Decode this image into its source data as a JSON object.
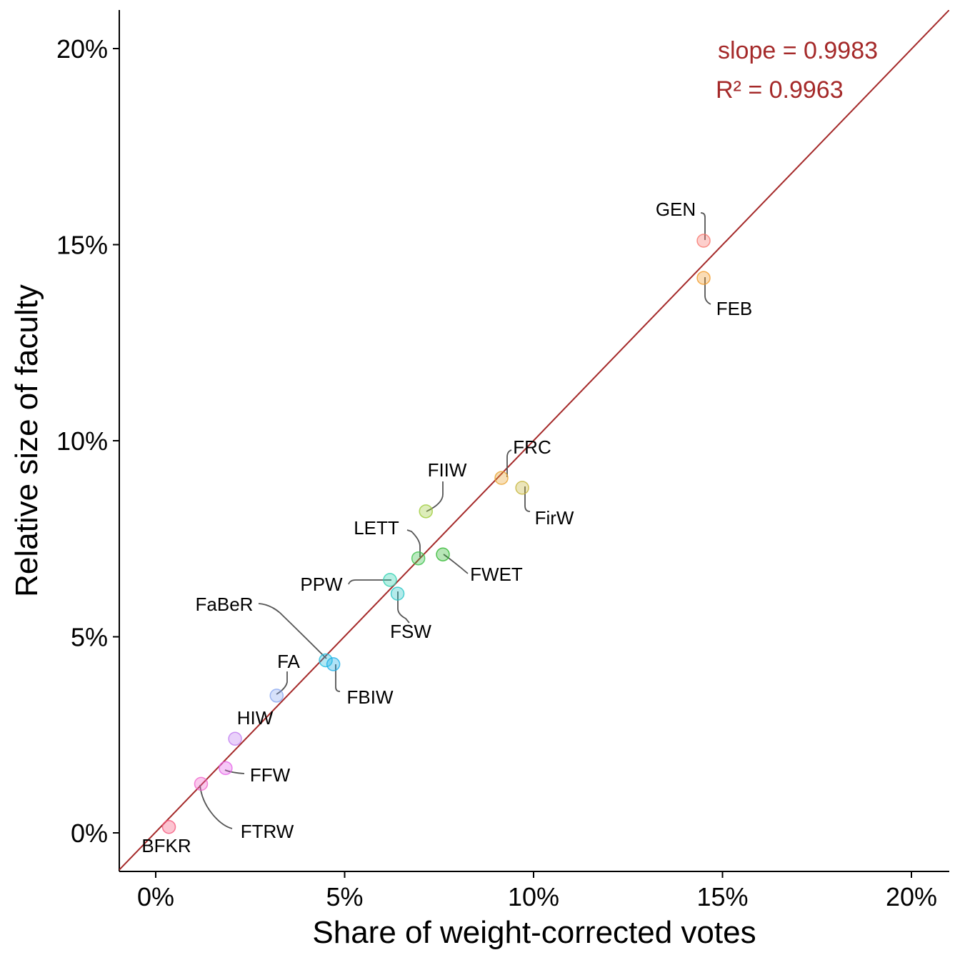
{
  "chart_data": {
    "type": "scatter",
    "xlabel": "Share of weight-corrected votes",
    "ylabel": "Relative size of faculty",
    "xlim": [
      -0.9,
      21.0
    ],
    "ylim": [
      -1.0,
      21.0
    ],
    "x_ticks": [
      0,
      5,
      10,
      15,
      20
    ],
    "x_tick_labels": [
      "0%",
      "5%",
      "10%",
      "15%",
      "20%"
    ],
    "y_ticks": [
      0,
      5,
      10,
      15,
      20
    ],
    "y_tick_labels": [
      "0%",
      "5%",
      "10%",
      "15%",
      "20%"
    ],
    "grid": false,
    "legend": "none",
    "fit_line": {
      "slope": 0.9983,
      "intercept": 0.02,
      "color": "#a52a2a"
    },
    "annotations": [
      {
        "text": "slope = 0.9983",
        "color": "#a52a2a"
      },
      {
        "text": "R² = 0.9963",
        "color": "#a52a2a"
      }
    ],
    "points": [
      {
        "label": "GEN",
        "x": 14.5,
        "y": 15.1,
        "color": "#f8766d"
      },
      {
        "label": "FEB",
        "x": 14.5,
        "y": 14.15,
        "color": "#f29c2c"
      },
      {
        "label": "FRC",
        "x": 9.15,
        "y": 9.05,
        "color": "#e8a431"
      },
      {
        "label": "FirW",
        "x": 9.7,
        "y": 8.8,
        "color": "#c6b43a"
      },
      {
        "label": "FIIW",
        "x": 7.15,
        "y": 8.2,
        "color": "#9dcc3a"
      },
      {
        "label": "LETT",
        "x": 6.95,
        "y": 7.0,
        "color": "#3cc04a"
      },
      {
        "label": "FWET",
        "x": 7.6,
        "y": 7.1,
        "color": "#2eb82e"
      },
      {
        "label": "PPW",
        "x": 6.2,
        "y": 6.45,
        "color": "#2dd0b0"
      },
      {
        "label": "FSW",
        "x": 6.4,
        "y": 6.1,
        "color": "#27c6c6"
      },
      {
        "label": "FaBeR",
        "x": 4.5,
        "y": 4.4,
        "color": "#22bde0"
      },
      {
        "label": "FBIW",
        "x": 4.7,
        "y": 4.3,
        "color": "#1aaee8"
      },
      {
        "label": "FA",
        "x": 3.2,
        "y": 3.5,
        "color": "#8aa8f0"
      },
      {
        "label": "HIW",
        "x": 2.1,
        "y": 2.4,
        "color": "#c07cf0"
      },
      {
        "label": "FFW",
        "x": 1.85,
        "y": 1.65,
        "color": "#e662e8"
      },
      {
        "label": "FTRW",
        "x": 1.2,
        "y": 1.25,
        "color": "#f064cc"
      },
      {
        "label": "BFKR",
        "x": 0.35,
        "y": 0.15,
        "color": "#f5577c"
      }
    ]
  }
}
